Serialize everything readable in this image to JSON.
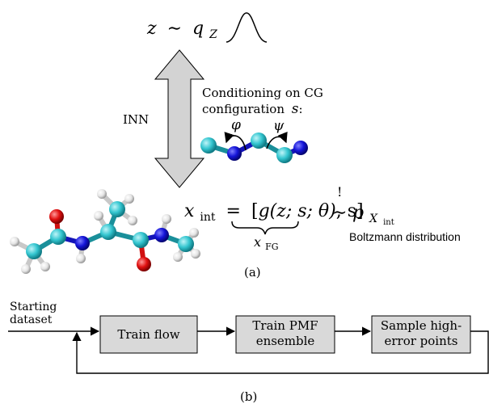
{
  "panel_a": {
    "latent": {
      "lhs": "z",
      "sim": "∼",
      "q": "q",
      "q_sub": "Z"
    },
    "inn_label": "INN",
    "conditioning_line1": "Conditioning on CG",
    "conditioning_line2": "configuration",
    "conditioning_var": "s",
    "conditioning_colon": ":",
    "phi": "φ",
    "psi": "ψ",
    "equation": {
      "lhs": "x",
      "lhs_sub": "int",
      "eq": "=",
      "open": "[",
      "g_expr": "g(z; s; θ)",
      "comma_s": ", s]",
      "bang": "!",
      "tilde": "∼",
      "p": "p",
      "p_sub_x": "X",
      "p_sub_int": "int"
    },
    "brace_label": "x",
    "brace_label_sub": "FG",
    "boltzmann": "Boltzmann distribution",
    "caption": "(a)"
  },
  "panel_b": {
    "start_line1": "Starting",
    "start_line2": "dataset",
    "box1": "Train flow",
    "box2_line1": "Train PMF",
    "box2_line2": "ensemble",
    "box3_line1": "Sample high-",
    "box3_line2": "error points",
    "caption": "(b)"
  },
  "colors": {
    "cyan_atom": "#34c6d0",
    "blue_atom": "#1010d8",
    "red_atom": "#e01010",
    "white_atom": "#e8e8e8",
    "box_fill": "#d9d9d9",
    "arrow_fill": "#d3d3d3"
  }
}
